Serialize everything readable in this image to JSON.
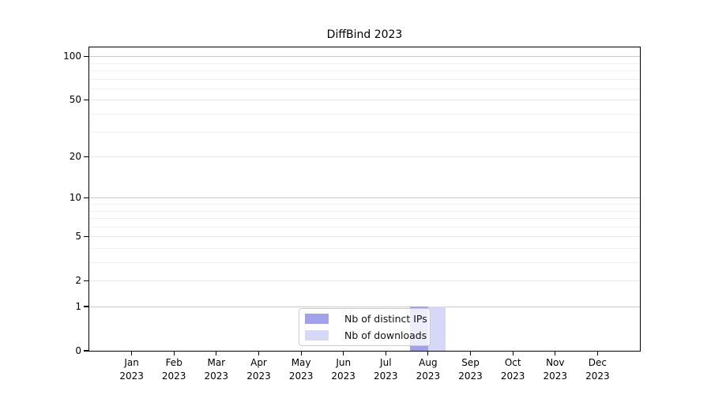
{
  "chart_data": {
    "type": "bar",
    "title": "DiffBind 2023",
    "categories": [
      "Jan",
      "Feb",
      "Mar",
      "Apr",
      "May",
      "Jun",
      "Jul",
      "Aug",
      "Sep",
      "Oct",
      "Nov",
      "Dec"
    ],
    "category_year": "2023",
    "series": [
      {
        "name": "Nb of distinct IPs",
        "color": "#a2a2ec",
        "values": [
          0,
          0,
          0,
          0,
          0,
          0,
          0,
          1,
          0,
          0,
          0,
          0
        ]
      },
      {
        "name": "Nb of downloads",
        "color": "#d7d7f8",
        "values": [
          0,
          0,
          0,
          0,
          0,
          0,
          0,
          1,
          0,
          0,
          0,
          0
        ]
      }
    ],
    "y_scale": "log1p",
    "y_ticks": [
      0,
      1,
      2,
      5,
      10,
      20,
      50,
      100
    ],
    "y_minor_gridlines": [
      3,
      4,
      6,
      7,
      8,
      9,
      30,
      40,
      60,
      70,
      80,
      90
    ],
    "ylim": [
      0,
      115
    ],
    "grid": true,
    "legend_position": "bottom-center",
    "colors": {
      "major_grid": "#c9c9c9",
      "mid_grid": "#e6e6e6",
      "minor_grid": "#f1f1f1",
      "axis": "#000000",
      "background": "#ffffff"
    }
  }
}
